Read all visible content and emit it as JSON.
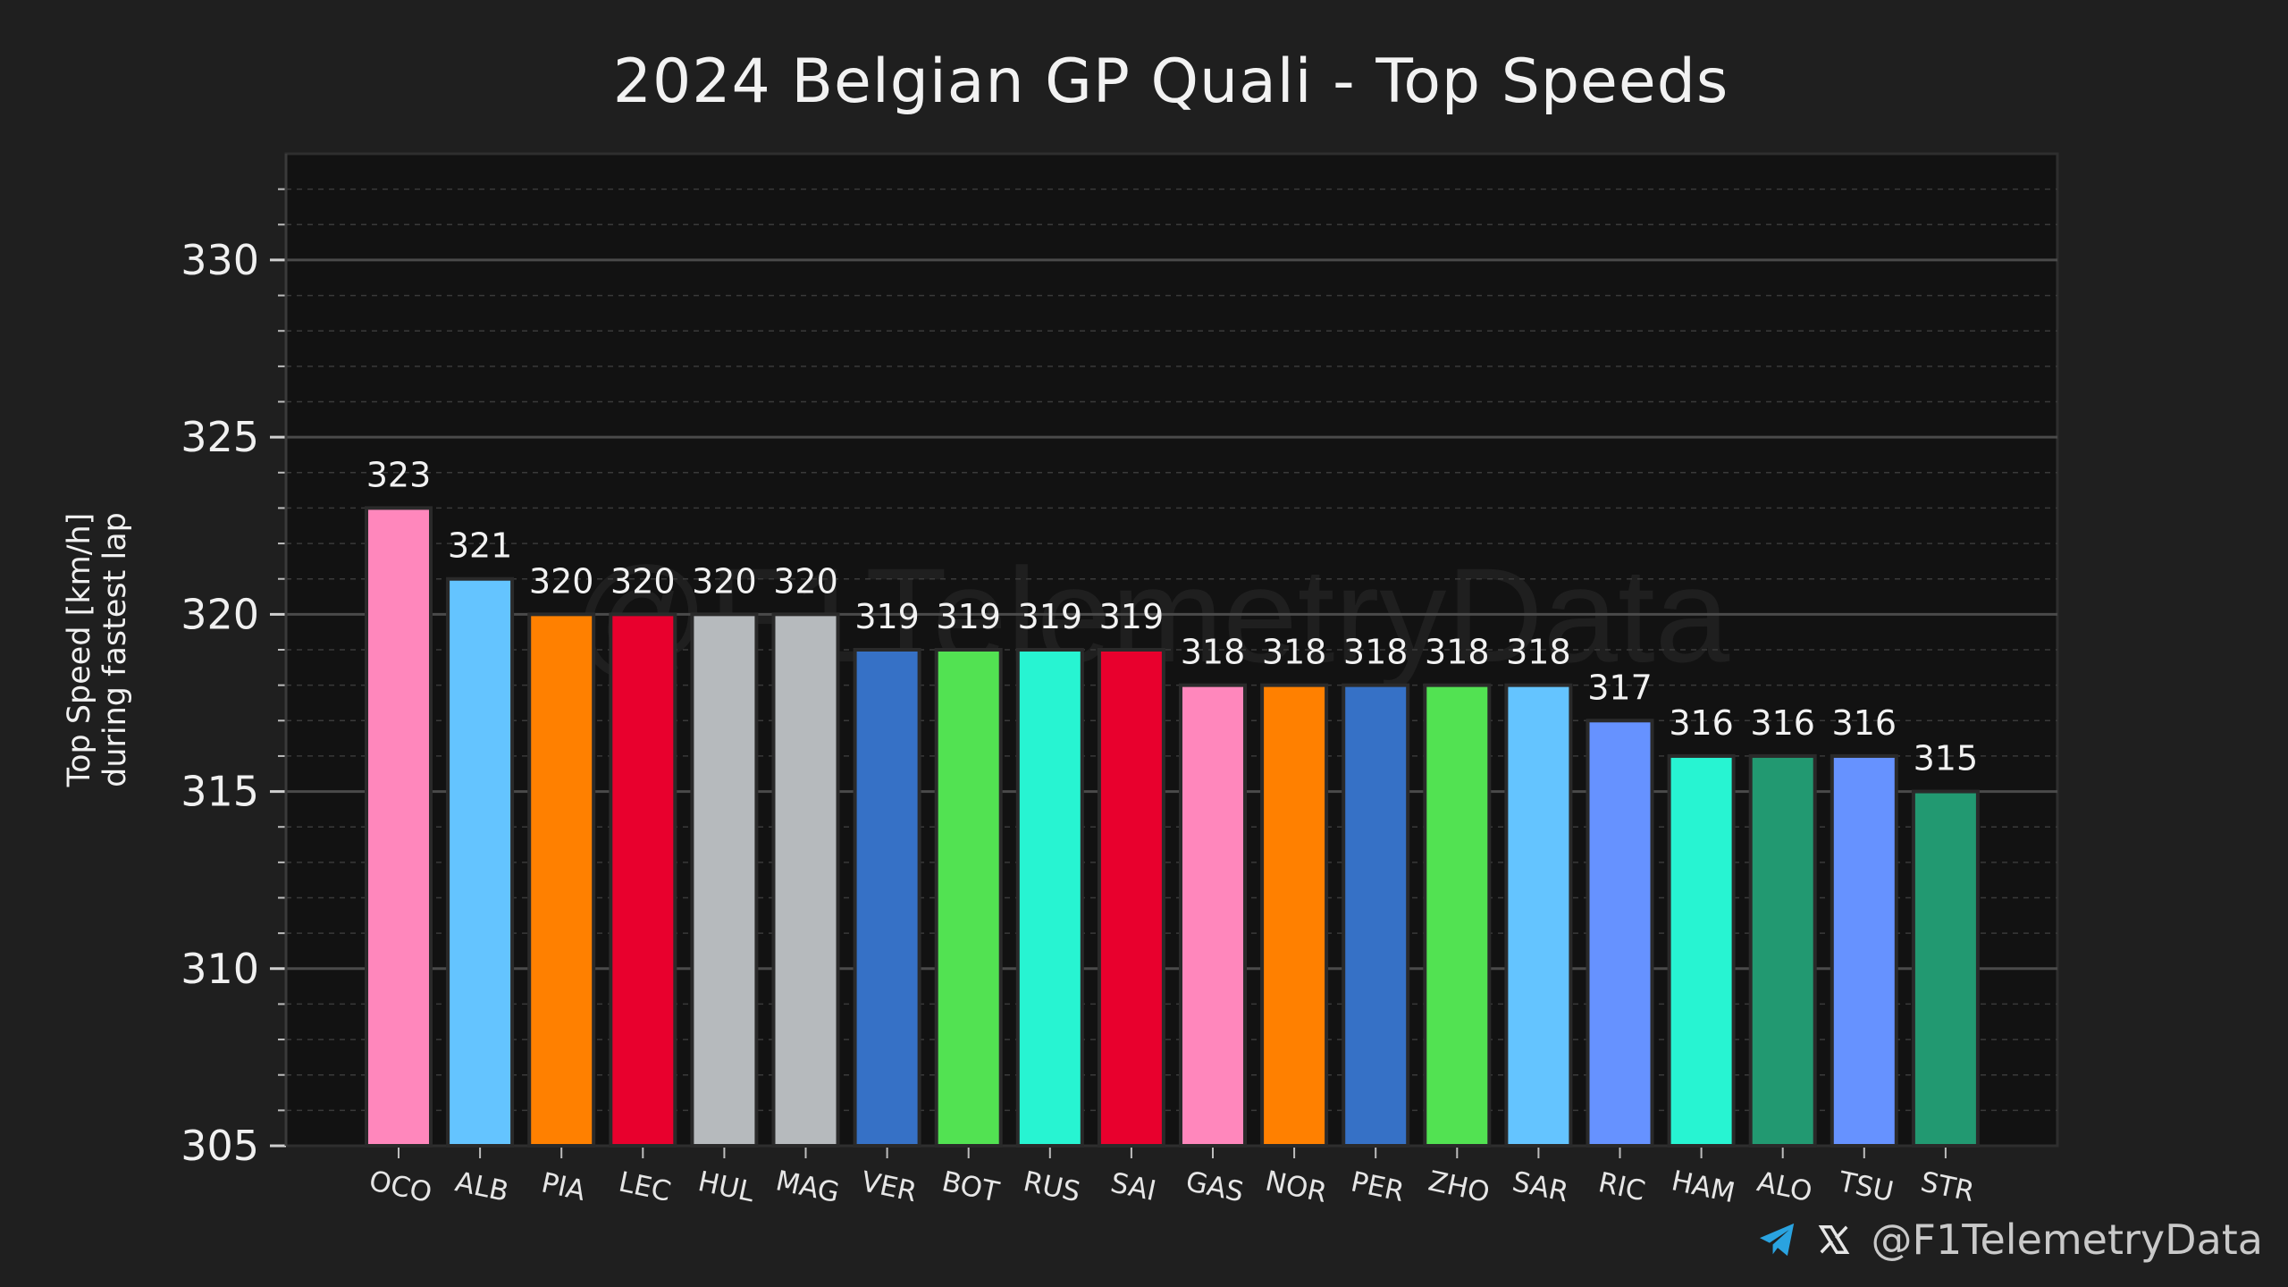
{
  "chart_data": {
    "type": "bar",
    "title": "2024 Belgian GP Quali - Top Speeds",
    "ylabel": [
      "Top Speed [km/h]",
      "during fastest lap"
    ],
    "xlabel": "",
    "ylim": [
      305,
      333
    ],
    "yticks": [
      305,
      310,
      315,
      320,
      325,
      330
    ],
    "grid": true,
    "watermark": "@F1TelemetryData",
    "categories": [
      "OCO",
      "ALB",
      "PIA",
      "LEC",
      "HUL",
      "MAG",
      "VER",
      "BOT",
      "RUS",
      "SAI",
      "GAS",
      "NOR",
      "PER",
      "ZHO",
      "SAR",
      "RIC",
      "HAM",
      "ALO",
      "TSU",
      "STR"
    ],
    "values": [
      323,
      321,
      320,
      320,
      320,
      320,
      319,
      319,
      319,
      319,
      318,
      318,
      318,
      318,
      318,
      317,
      316,
      316,
      316,
      315
    ],
    "colors": [
      "#ff87bc",
      "#64c4ff",
      "#ff8000",
      "#e8002d",
      "#b6babd",
      "#b6babd",
      "#3671c6",
      "#52e252",
      "#27f4d2",
      "#e8002d",
      "#ff87bc",
      "#ff8000",
      "#3671c6",
      "#52e252",
      "#64c4ff",
      "#6692ff",
      "#27f4d2",
      "#229971",
      "#6692ff",
      "#229971"
    ]
  },
  "footer": {
    "handle": "@F1TelemetryData",
    "icons": [
      "telegram-icon",
      "x-icon"
    ],
    "telegram_color": "#2aa3e0"
  }
}
